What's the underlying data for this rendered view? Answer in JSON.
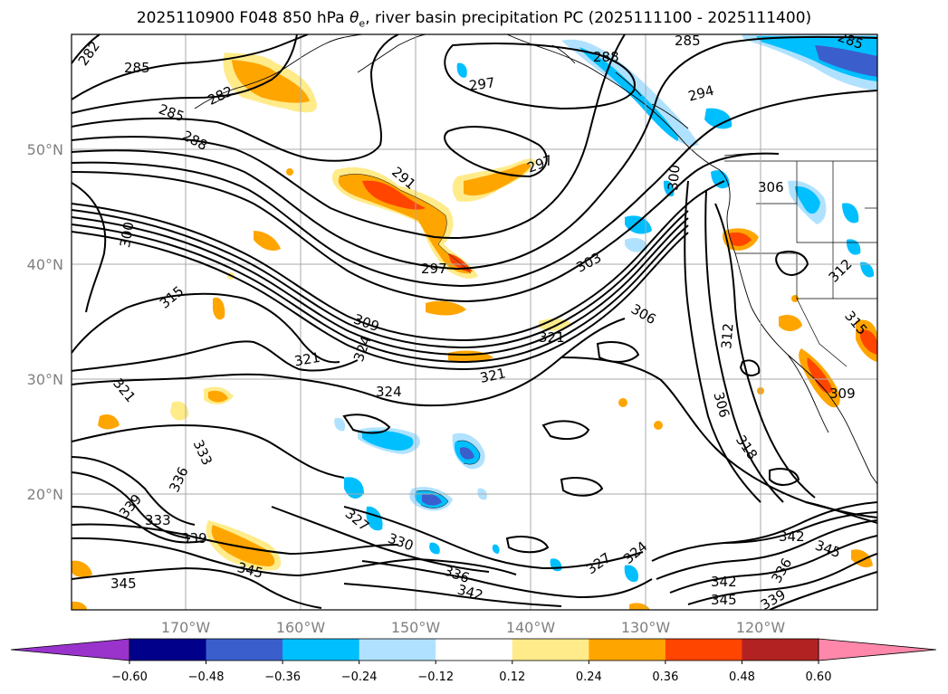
{
  "title": {
    "prefix": "2025110900 F048 850 hPa ",
    "theta": "θ",
    "theta_sub": "e",
    "suffix": ", river basin precipitation PC (2025111100 - 2025111400)"
  },
  "map": {
    "lat_labels": [
      "50°N",
      "40°N",
      "30°N",
      "20°N"
    ],
    "lon_labels": [
      "170°W",
      "160°W",
      "150°W",
      "140°W",
      "130°W",
      "120°W"
    ],
    "contour_labels": [
      "282",
      "285",
      "288",
      "291",
      "294",
      "297",
      "300",
      "303",
      "306",
      "309",
      "312",
      "315",
      "318",
      "321",
      "324",
      "327",
      "330",
      "333",
      "336",
      "339",
      "342",
      "345"
    ]
  },
  "colorbar": {
    "ticks": [
      "−0.60",
      "−0.48",
      "−0.36",
      "−0.24",
      "−0.12",
      "0.12",
      "0.24",
      "0.36",
      "0.48",
      "0.60"
    ],
    "colors": {
      "under": "#9933cc",
      "bins": [
        "#00008b",
        "#3a5fcd",
        "#00bfff",
        "#b0e2ff",
        "#ffffff",
        "#ffeb8a",
        "#ffa500",
        "#ff4500",
        "#b22222"
      ],
      "over": "#ff88aa"
    }
  }
}
